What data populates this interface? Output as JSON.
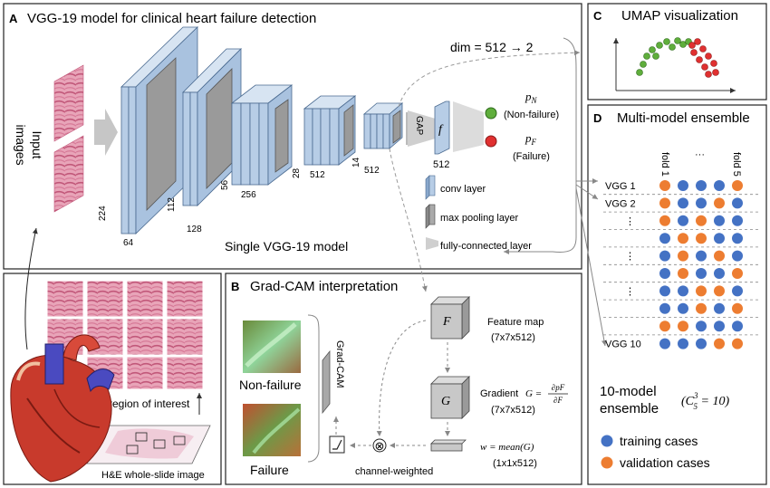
{
  "panelA": {
    "letter": "A",
    "title": "VGG-19 model for clinical heart failure detection",
    "input_label_1": "Input",
    "input_label_2": "images",
    "dims": {
      "d224": "224",
      "d64": "64",
      "d112": "112",
      "d128": "128",
      "d56": "56",
      "d256": "256",
      "d28": "28",
      "d512a": "512",
      "d14": "14",
      "d512b": "512",
      "d512c": "512"
    },
    "gap": "GAP",
    "f": "f",
    "dim_reduce": "dim = 512 → 2",
    "pN_sym": "p",
    "pN_sub": "N",
    "pN_label": "(Non-failure)",
    "pF_sym": "p",
    "pF_sub": "F",
    "pF_label": "(Failure)",
    "single_model": "Single VGG-19 model",
    "legend": {
      "conv": "conv layer",
      "pool": "max pooling layer",
      "fc": "fully-connected layer"
    }
  },
  "panelB": {
    "letter": "B",
    "title": "Grad-CAM interpretation",
    "nonfailure": "Non-failure",
    "failure": "Failure",
    "gradcam": "Grad-CAM",
    "F": "F",
    "feature_map": "Feature map",
    "feature_dim": "(7x7x512)",
    "G": "G",
    "gradient": "Gradient",
    "G_eq": "G =",
    "frac_num": "∂pF",
    "frac_den": "∂F",
    "gradient_dim": "(7x7x512)",
    "w_eq": "w = mean(G)",
    "w_dim": "(1x1x512)",
    "channel_weighted": "channel-weighted",
    "otimes": "⊗"
  },
  "panelC": {
    "letter": "C",
    "title": "UMAP visualization"
  },
  "panelD": {
    "letter": "D",
    "title": "Multi-model ensemble",
    "fold_first": "fold 1",
    "fold_dots": "···",
    "fold_last": "fold 5",
    "rows": [
      {
        "label": "VGG 1",
        "colors": [
          "o",
          "b",
          "b",
          "b",
          "o"
        ]
      },
      {
        "label": "VGG 2",
        "colors": [
          "o",
          "b",
          "b",
          "o",
          "b"
        ]
      },
      {
        "label": "⋮",
        "colors": [
          "o",
          "b",
          "o",
          "b",
          "b"
        ]
      },
      {
        "label": "",
        "colors": [
          "b",
          "o",
          "o",
          "b",
          "b"
        ]
      },
      {
        "label": "⋮",
        "colors": [
          "b",
          "o",
          "b",
          "o",
          "b"
        ]
      },
      {
        "label": "",
        "colors": [
          "b",
          "o",
          "b",
          "b",
          "o"
        ]
      },
      {
        "label": "⋮",
        "colors": [
          "b",
          "b",
          "o",
          "o",
          "b"
        ]
      },
      {
        "label": "",
        "colors": [
          "b",
          "b",
          "o",
          "b",
          "o"
        ]
      },
      {
        "label": "",
        "colors": [
          "o",
          "o",
          "b",
          "b",
          "b"
        ]
      },
      {
        "label": "VGG 10",
        "colors": [
          "b",
          "b",
          "b",
          "o",
          "o"
        ]
      }
    ],
    "ensemble_1": "10-model",
    "ensemble_2": "ensemble",
    "comb": "(C",
    "comb_sup": "3",
    "comb_sub": "5",
    "comb_eq": " = 10)",
    "legend_train": "training cases",
    "legend_val": "validation cases"
  },
  "panelE": {
    "roi": "region of interest",
    "wsi": "H&E whole-slide image"
  },
  "colors": {
    "blue": "#4472c4",
    "orange": "#ed7d31",
    "green": "#5fae3c",
    "red": "#e03030",
    "layer": "#b7cde6"
  }
}
